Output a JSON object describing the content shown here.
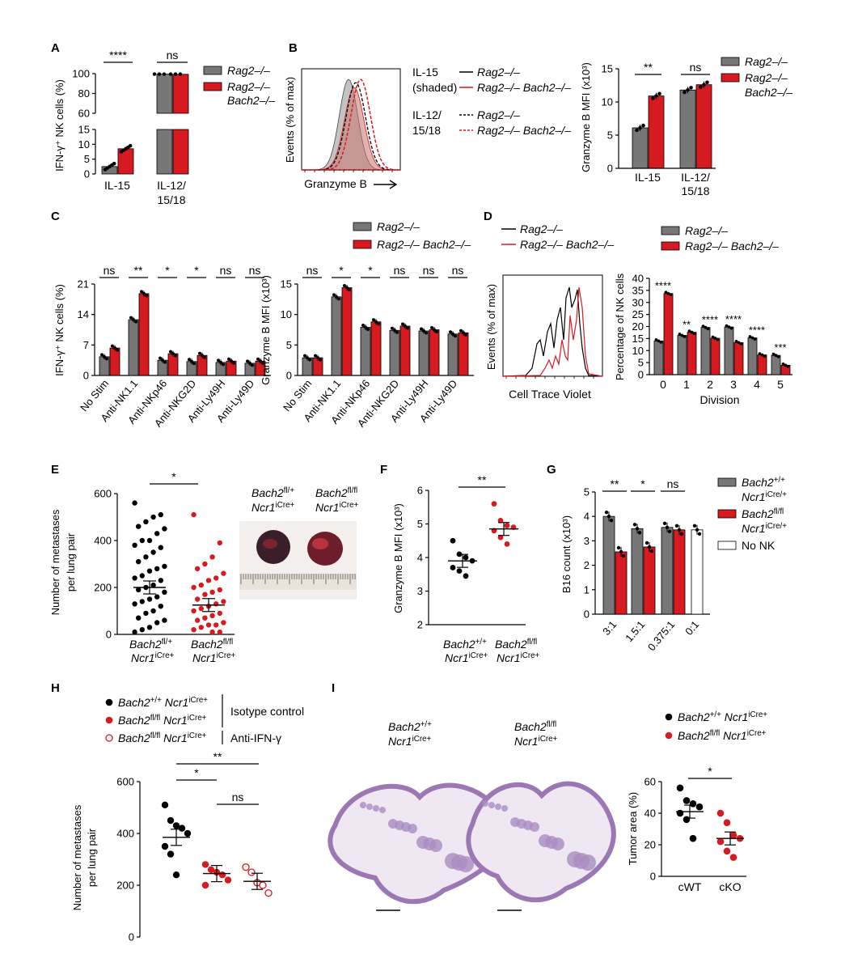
{
  "colors": {
    "grey": "#777777",
    "red": "#d71a20",
    "black": "#000000",
    "white": "#ffffff",
    "tissue": "#9b77b4"
  },
  "chart_data": [
    {
      "panel": "A",
      "type": "bar",
      "ylabel": "IFN-γ⁺ NK cells (%)",
      "categories": [
        "IL-15",
        "IL-12/15/18"
      ],
      "yticks_lower": [
        "0",
        "5",
        "10",
        "15"
      ],
      "yticks_upper": [
        "60",
        "80",
        "100"
      ],
      "series": [
        {
          "name": "Rag2–/–",
          "values": [
            2.5,
            99.5
          ]
        },
        {
          "name": "Rag2–/– Bach2–/–",
          "values": [
            8.5,
            99.3
          ]
        }
      ],
      "sig": [
        "****",
        "ns"
      ]
    },
    {
      "panel": "B-hist",
      "type": "area",
      "ylabel": "Events (% of max)",
      "xlabel": "Granzyme B",
      "legend": {
        "group1": "IL-15",
        "group1b": "(shaded)",
        "group2": "IL-12/",
        "group2b": "15/18",
        "s1": "Rag2–/–",
        "s2": "Rag2–/– Bach2–/–",
        "s3": "Rag2–/–",
        "s4": "Rag2–/– Bach2–/–"
      }
    },
    {
      "panel": "B-bar",
      "type": "bar",
      "ylabel": "Granzyme B MFI (x10³)",
      "ylim": [
        0,
        15
      ],
      "yticks": [
        "0",
        "5",
        "10",
        "15"
      ],
      "categories": [
        "IL-15",
        "IL-12/15/18"
      ],
      "series": [
        {
          "name": "Rag2–/–",
          "values": [
            6.1,
            11.8
          ]
        },
        {
          "name": "Rag2–/– Bach2–/–",
          "values": [
            10.9,
            12.6
          ]
        }
      ],
      "sig": [
        "**",
        "ns"
      ]
    },
    {
      "panel": "C-left",
      "type": "bar",
      "ylabel": "IFN-γ⁺ NK cells (%)",
      "ylim": [
        0,
        21
      ],
      "yticks": [
        "0",
        "7",
        "14",
        "21"
      ],
      "categories": [
        "No Stim",
        "Anti-NK1.1",
        "Anti-NKp46",
        "Anti-NKG2D",
        "Anti-Ly49H",
        "Anti-Ly49D"
      ],
      "series": [
        {
          "name": "Rag2–/–",
          "values": [
            4.3,
            12.8,
            3.5,
            3.2,
            3.0,
            2.8
          ]
        },
        {
          "name": "Rag2–/– Bach2–/–",
          "values": [
            6.3,
            18.8,
            5.0,
            4.6,
            3.3,
            3.3
          ]
        }
      ],
      "sig": [
        "ns",
        "**",
        "*",
        "*",
        "ns",
        "ns"
      ]
    },
    {
      "panel": "C-right",
      "type": "bar",
      "ylabel": "Granzyme B MFI (x10³)",
      "ylim": [
        0,
        15
      ],
      "yticks": [
        "0",
        "5",
        "10",
        "15"
      ],
      "categories": [
        "No Stim",
        "Anti-NK1.1",
        "Anti-NKp46",
        "Anti-NKG2D",
        "Anti-Ly49H",
        "Anti-Ly49D"
      ],
      "series": [
        {
          "name": "Rag2–/–",
          "values": [
            2.9,
            12.9,
            7.9,
            7.4,
            7.3,
            6.8
          ]
        },
        {
          "name": "Rag2–/– Bach2–/–",
          "values": [
            2.9,
            14.4,
            8.8,
            8.1,
            7.5,
            7.0
          ]
        }
      ],
      "sig": [
        "ns",
        "*",
        "*",
        "ns",
        "ns",
        "ns"
      ]
    },
    {
      "panel": "D-hist",
      "type": "line",
      "ylabel": "Events (% of max)",
      "xlabel": "Cell Trace Violet",
      "legend": [
        "Rag2–/–",
        "Rag2–/– Bach2–/–"
      ]
    },
    {
      "panel": "D-bar",
      "type": "bar",
      "ylabel": "Percentage of NK cells",
      "xlabel": "Division",
      "ylim": [
        0,
        40
      ],
      "yticks": [
        "0",
        "5",
        "10",
        "15",
        "20",
        "25",
        "30",
        "35",
        "40"
      ],
      "categories": [
        "0",
        "1",
        "2",
        "3",
        "4",
        "5"
      ],
      "series": [
        {
          "name": "Rag2–/–",
          "values": [
            14,
            16.3,
            19.6,
            19.8,
            15.3,
            8.0
          ]
        },
        {
          "name": "Rag2–/– Bach2–/–",
          "values": [
            33.7,
            17.6,
            15.1,
            13.3,
            8.2,
            3.9
          ]
        }
      ],
      "sig": [
        "****",
        "**",
        "****",
        "****",
        "****",
        "***"
      ],
      "legend": [
        "Rag2–/–",
        "Rag2–/– Bach2–/–"
      ]
    },
    {
      "panel": "E",
      "type": "scatter",
      "ylabel": "Number of metastases per lung pair",
      "ylim": [
        0,
        600
      ],
      "yticks": [
        "0",
        "200",
        "400",
        "600"
      ],
      "groups": [
        "Bach2fl/+ Ncr1iCre+",
        "Bach2fl/fl Ncr1iCre+"
      ],
      "means": [
        200,
        125
      ],
      "sig": "*",
      "photo_labels": [
        "Bach2fl/+ Ncr1iCre+",
        "Bach2fl/fl Ncr1iCre+"
      ],
      "points": [
        [
          560,
          510,
          500,
          480,
          460,
          450,
          430,
          400,
          400,
          380,
          370,
          350,
          330,
          310,
          290,
          280,
          270,
          250,
          240,
          230,
          210,
          200,
          190,
          180,
          160,
          150,
          140,
          130,
          120,
          100,
          90,
          70,
          60,
          50,
          30,
          20,
          10
        ],
        [
          510,
          390,
          330,
          300,
          280,
          260,
          240,
          230,
          210,
          200,
          190,
          180,
          170,
          150,
          140,
          130,
          120,
          110,
          100,
          90,
          80,
          70,
          60,
          50,
          40,
          40,
          30,
          20,
          10,
          10
        ]
      ]
    },
    {
      "panel": "F",
      "type": "scatter",
      "ylabel": "Granzyme B MFI (x10³)",
      "ylim": [
        2,
        6
      ],
      "yticks": [
        "2",
        "3",
        "4",
        "5",
        "6"
      ],
      "groups": [
        "Bach2+/+ Ncr1iCre+",
        "Bach2fl/fl Ncr1iCre+"
      ],
      "means": [
        3.9,
        4.85
      ],
      "sig": "**",
      "points": [
        [
          4.5,
          4.1,
          4.0,
          3.9,
          3.7,
          3.6,
          3.45
        ],
        [
          5.6,
          5.1,
          4.95,
          4.9,
          4.8,
          4.6,
          4.4
        ]
      ]
    },
    {
      "panel": "G",
      "type": "bar",
      "ylabel": "B16 count (x10³)",
      "ylim": [
        0,
        5
      ],
      "yticks": [
        "0",
        "1",
        "2",
        "3",
        "4",
        "5"
      ],
      "categories": [
        "3:1",
        "1.5:1",
        "0.375:1",
        "0:1"
      ],
      "series": [
        {
          "name": "Bach2+/+ Ncr1iCre/+",
          "values": [
            4.0,
            3.5,
            3.55,
            null
          ]
        },
        {
          "name": "Bach2fl/fl Ncr1iCre/+",
          "values": [
            2.55,
            2.75,
            3.45,
            null
          ]
        },
        {
          "name": "No NK",
          "values": [
            null,
            null,
            null,
            3.45
          ]
        }
      ],
      "sig": [
        "**",
        "*",
        "ns"
      ]
    },
    {
      "panel": "H",
      "type": "scatter",
      "ylabel": "Number of metastases per lung pair",
      "ylim": [
        0,
        600
      ],
      "yticks": [
        "0",
        "200",
        "400",
        "600"
      ],
      "legend": {
        "s1": "Bach2+/+ Ncr1iCre+",
        "s2": "Bach2fl/fl Ncr1iCre+",
        "s3": "Bach2fl/fl Ncr1iCre+",
        "isotype": "Isotype control",
        "anti": "Anti-IFN-γ"
      },
      "means": [
        385,
        245,
        215
      ],
      "sig": [
        "*",
        "**",
        "ns"
      ],
      "points": [
        [
          510,
          450,
          430,
          420,
          400,
          350,
          320,
          240
        ],
        [
          280,
          260,
          250,
          240,
          220,
          200
        ],
        [
          270,
          250,
          210,
          200,
          170
        ]
      ]
    },
    {
      "panel": "I",
      "type": "scatter",
      "ylabel": "Tumor area (%)",
      "ylim": [
        0,
        60
      ],
      "yticks": [
        "0",
        "20",
        "40",
        "60"
      ],
      "categories": [
        "cWT",
        "cKO"
      ],
      "legend": [
        "Bach2+/+ Ncr1iCre+",
        "Bach2fl/fl Ncr1iCre+"
      ],
      "means": [
        41,
        24
      ],
      "sig": "*",
      "points": [
        [
          56,
          48,
          46,
          44,
          40,
          36,
          24
        ],
        [
          40,
          34,
          26,
          24,
          22,
          16,
          12
        ]
      ],
      "image_labels": [
        "Bach2+/+ Ncr1iCre+",
        "Bach2fl/fl Ncr1iCre+"
      ]
    }
  ],
  "panel_letters": [
    "A",
    "B",
    "C",
    "D",
    "E",
    "F",
    "G",
    "H",
    "I"
  ]
}
